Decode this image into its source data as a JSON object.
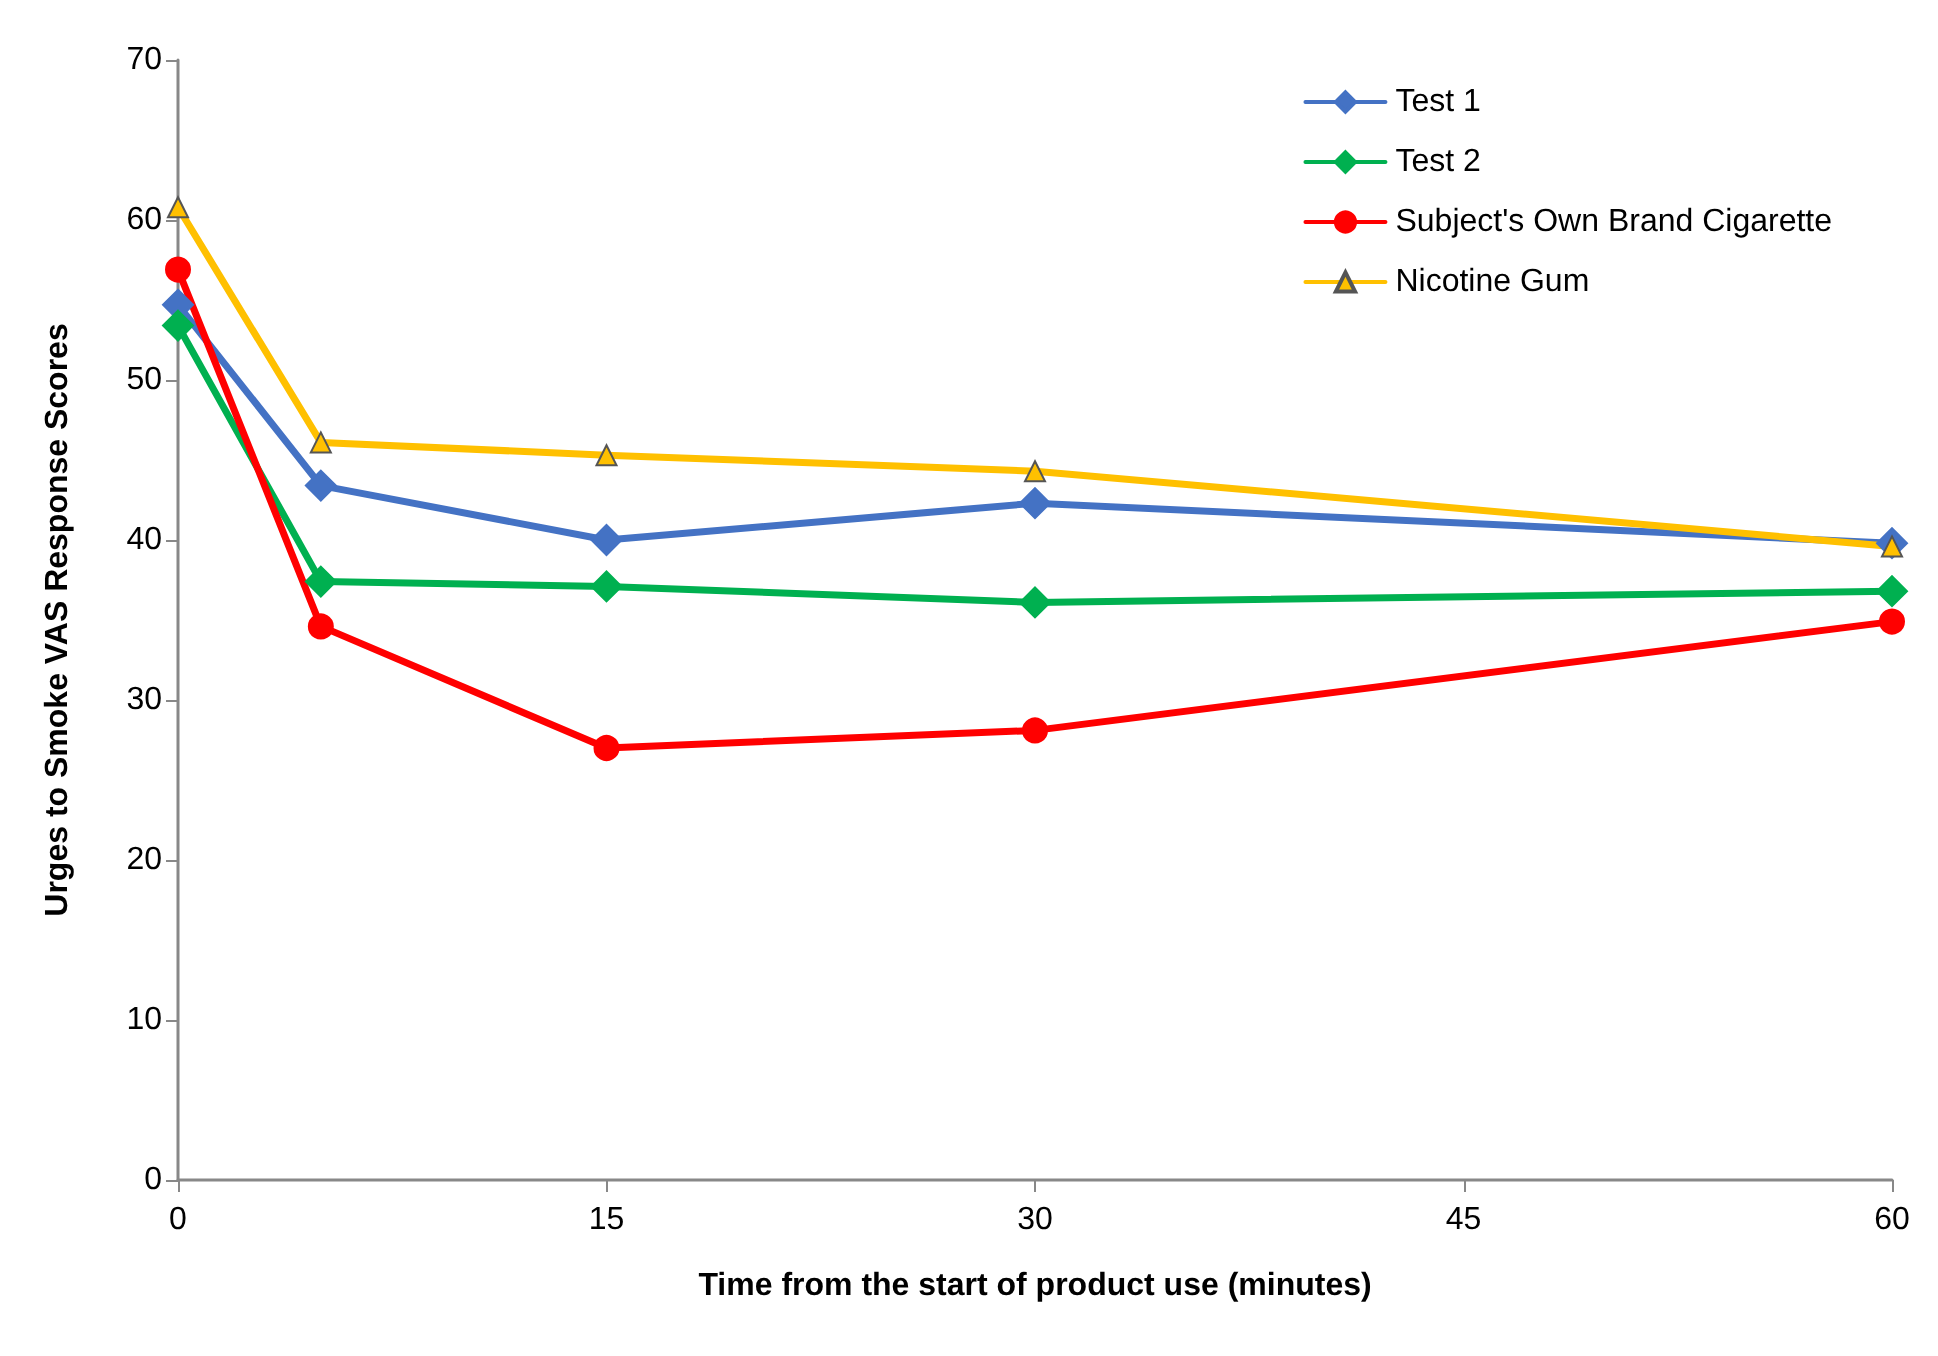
{
  "chart_data": {
    "type": "line",
    "xlabel": "Time from the start of product use (minutes)",
    "ylabel": "Urges to Smoke VAS Response Scores",
    "x": [
      0,
      5,
      15,
      30,
      60
    ],
    "xlim": [
      0,
      60
    ],
    "xticks": [
      0,
      15,
      30,
      45,
      60
    ],
    "ylim": [
      0,
      70
    ],
    "yticks": [
      0,
      10,
      20,
      30,
      40,
      50,
      60,
      70
    ],
    "grid": false,
    "legend": "top right",
    "series": [
      {
        "name": "Test 1",
        "color": "#4472c4",
        "marker": "diamond",
        "values": [
          54.7,
          43.4,
          40.0,
          42.3,
          39.8
        ]
      },
      {
        "name": "Test 2",
        "color": "#00b050",
        "marker": "diamond",
        "values": [
          53.4,
          37.4,
          37.1,
          36.1,
          36.8
        ]
      },
      {
        "name": "Subject's Own Brand Cigarette",
        "color": "#ff0000",
        "marker": "circle",
        "values": [
          56.9,
          34.6,
          27.0,
          28.1,
          34.9
        ]
      },
      {
        "name": "Nicotine Gum",
        "color": "#ffc000",
        "marker": "triangle",
        "values": [
          60.8,
          46.1,
          45.3,
          44.3,
          39.6
        ]
      }
    ]
  }
}
